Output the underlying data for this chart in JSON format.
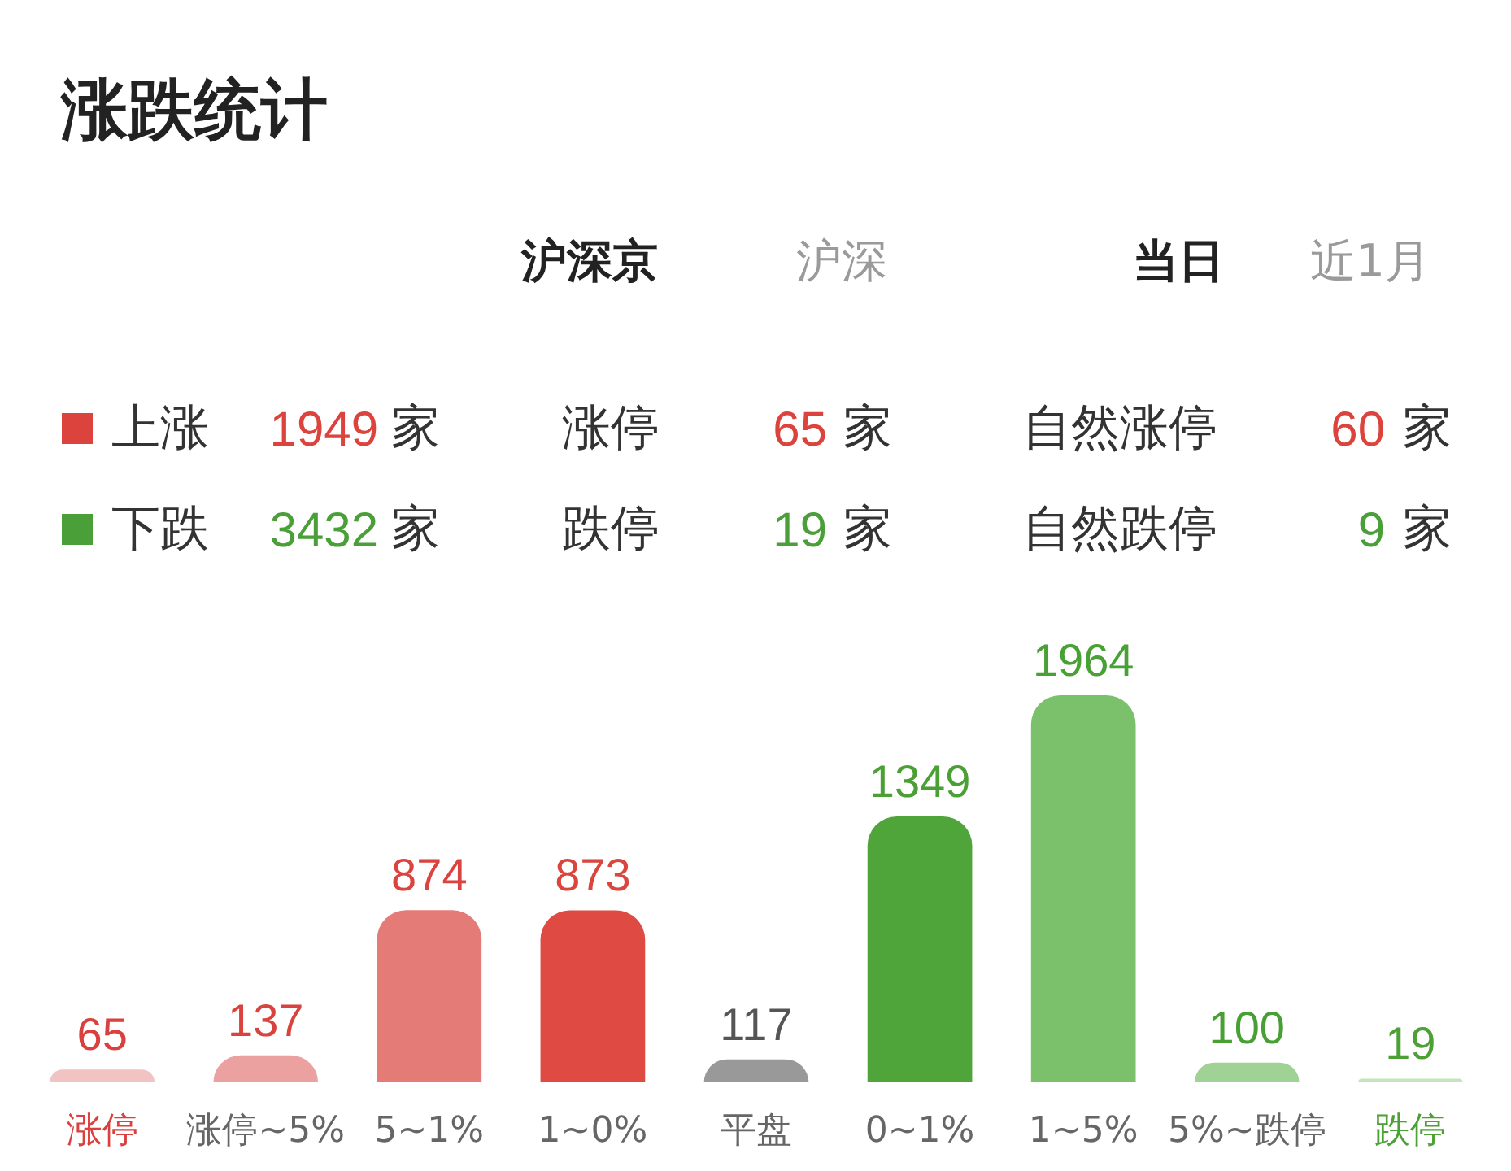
{
  "chart_data": [
    {
      "type": "other",
      "title": "涨跌统计",
      "annotations": [
        "沪深京",
        "沪深",
        "当日",
        "近1月"
      ],
      "ylabel": "家",
      "data_labels": true,
      "series": [
        {
          "name": "上涨",
          "color": "#dc433d",
          "values": [
            1949
          ]
        },
        {
          "name": "涨停",
          "values": [
            65
          ]
        },
        {
          "name": "自然涨停",
          "values": [
            60
          ]
        },
        {
          "name": "下跌",
          "color": "#4a9f38",
          "values": [
            3432
          ]
        },
        {
          "name": "跌停",
          "values": [
            19
          ]
        },
        {
          "name": "自然跌停",
          "values": [
            9
          ]
        }
      ]
    },
    {
      "type": "bar",
      "categories": [
        "涨停",
        "涨停~5%",
        "5~1%",
        "1~0%",
        "平盘",
        "0~1%",
        "1~5%",
        "5%~跌停",
        "跌停"
      ],
      "values": [
        65,
        137,
        874,
        873,
        117,
        1349,
        1964,
        100,
        19
      ],
      "colors": [
        "#f1c4c3",
        "#eaa19f",
        "#e57b77",
        "#df4a43",
        "#999999",
        "#4fa53a",
        "#7bc06b",
        "#a0d295",
        "#c4e4bb"
      ],
      "data_labels": true
    }
  ]
}
